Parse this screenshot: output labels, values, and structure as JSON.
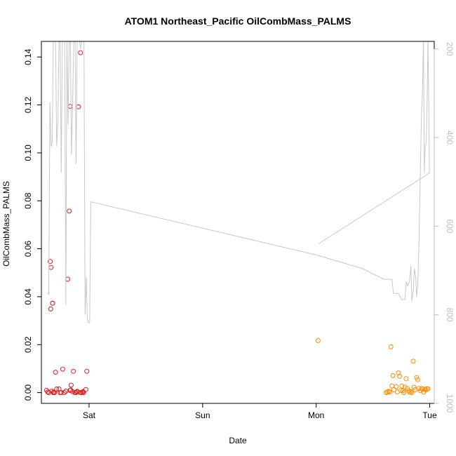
{
  "chart_data": {
    "type": "scatter",
    "title": "ATOM1 Northeast_Pacific OilCombMass_PALMS",
    "xlabel": "Date",
    "ylabel": "OilCombMass_PALMS",
    "x_unit": "days",
    "xlim": [
      -0.42,
      3.04
    ],
    "ylim": [
      -0.0045,
      0.1465
    ],
    "x_ticks": [
      {
        "value": 0,
        "label": "Sat"
      },
      {
        "value": 1,
        "label": "Sun"
      },
      {
        "value": 2,
        "label": "Mon"
      },
      {
        "value": 3,
        "label": "Tue"
      }
    ],
    "y_ticks": [
      0.0,
      0.02,
      0.04,
      0.06,
      0.08,
      0.1,
      0.12,
      0.14
    ],
    "y_tick_labels": [
      "0.00",
      "0.02",
      "0.04",
      "0.06",
      "0.08",
      "0.10",
      "0.12",
      "0.14"
    ],
    "y2lim": [
      183,
      1000
    ],
    "y2_reversed": true,
    "y2_ticks": [
      200,
      400,
      600,
      800,
      1000
    ],
    "y2_tick_labels": [
      "200",
      "400",
      "600",
      "800",
      "1000"
    ],
    "grid": false,
    "series": [
      {
        "color": "#e41a1c",
        "x": [
          -0.374,
          -0.365,
          -0.356,
          -0.342,
          -0.335,
          -0.328,
          -0.315,
          -0.295,
          -0.285,
          -0.265,
          -0.255,
          -0.245,
          -0.232,
          -0.218,
          -0.205,
          -0.188,
          -0.175,
          -0.165,
          -0.158,
          -0.118,
          -0.104,
          -0.093,
          -0.075,
          -0.068,
          -0.058,
          -0.053,
          -0.048,
          -0.028,
          -0.338,
          -0.321,
          -0.322,
          -0.167,
          -0.162,
          -0.138,
          -0.145,
          -0.106,
          -0.312,
          -0.305,
          -0.125,
          -0.02,
          -0.075
        ],
        "y": [
          0.001,
          0.0003,
          0.0,
          0.0547,
          0.0522,
          0.0006,
          0.0,
          0.0085,
          0.0015,
          0.0015,
          0.0,
          0.0,
          0.0098,
          0.0,
          0.0006,
          0.0473,
          0.0757,
          0.1194,
          0.0031,
          0.0,
          0.0005,
          0.1192,
          0.1418,
          0.0,
          0.0002,
          0.0004,
          0.0,
          0.0013,
          0.0349,
          0.0373,
          0.0373,
          0.0009,
          0.0011,
          0.0089,
          0.0004,
          0.0002,
          0.0002,
          0.0,
          0.0,
          0.0089,
          0.0
        ]
      },
      {
        "color": "#ff8c00",
        "x": [
          2.017,
          2.617,
          2.628,
          2.638,
          2.648,
          2.658,
          2.668,
          2.676,
          2.685,
          2.705,
          2.715,
          2.725,
          2.735,
          2.748,
          2.755,
          2.765,
          2.772,
          2.782,
          2.792,
          2.802,
          2.815,
          2.822,
          2.835,
          2.842,
          2.855,
          2.862,
          2.872,
          2.885,
          2.895,
          2.905,
          2.918,
          2.928,
          2.938,
          2.948,
          2.957,
          2.965,
          2.975,
          2.985
        ],
        "y": [
          0.0217,
          0.0,
          0.0002,
          0.0005,
          0.0003,
          0.0191,
          0.0028,
          0.0071,
          0.0012,
          0.0025,
          0.0003,
          0.0082,
          0.0068,
          0.0009,
          0.0027,
          0.0008,
          0.0,
          0.0023,
          0.0058,
          0.0017,
          0.0008,
          0.0002,
          0.0004,
          0.0,
          0.0131,
          0.0022,
          0.0012,
          0.0063,
          0.0054,
          0.0017,
          0.0008,
          0.0017,
          0.0014,
          0.0002,
          0.0014,
          0.0011,
          0.0016,
          0.0016
        ]
      },
      {
        "axis": "right",
        "color": "#c8c8c8",
        "x": [
          -0.365,
          -0.355,
          -0.345,
          -0.335,
          -0.325,
          -0.315,
          -0.302,
          -0.295,
          -0.285,
          -0.274,
          -0.265,
          -0.255,
          -0.245,
          -0.235,
          -0.225,
          -0.215,
          -0.205,
          -0.195,
          -0.185,
          -0.175,
          -0.165,
          -0.155,
          -0.145,
          -0.135,
          -0.123,
          -0.115,
          -0.105,
          -0.095,
          -0.085,
          -0.075,
          -0.065,
          -0.055,
          -0.045,
          -0.035,
          -0.025,
          -0.015,
          -0.005,
          0.005,
          0.015,
          2.0,
          2.2,
          2.4,
          2.6,
          2.655,
          2.668,
          2.68,
          2.695,
          2.725,
          2.755,
          2.782,
          2.793,
          2.805,
          2.822,
          2.835,
          2.842,
          2.855,
          2.865,
          2.878,
          2.885,
          2.895,
          2.905,
          2.918,
          2.928,
          2.935,
          2.945,
          2.953,
          2.96,
          2.97,
          2.978,
          2.985,
          2.998,
          2.02
        ],
        "y": [
          750,
          754,
          320,
          420,
          410,
          180,
          180,
          180,
          420,
          360,
          180,
          180,
          480,
          180,
          180,
          180,
          778,
          180,
          370,
          180,
          180,
          440,
          330,
          180,
          180,
          460,
          180,
          180,
          180,
          200,
          180,
          180,
          180,
          800,
          715,
          810,
          818,
          818,
          545,
          665,
          680,
          695,
          720,
          720,
          720,
          752,
          752,
          752,
          766,
          765,
          725,
          735,
          725,
          690,
          770,
          745,
          695,
          720,
          760,
          730,
          640,
          465,
          340,
          310,
          180,
          480,
          420,
          410,
          300,
          180,
          480,
          640
        ]
      }
    ]
  }
}
